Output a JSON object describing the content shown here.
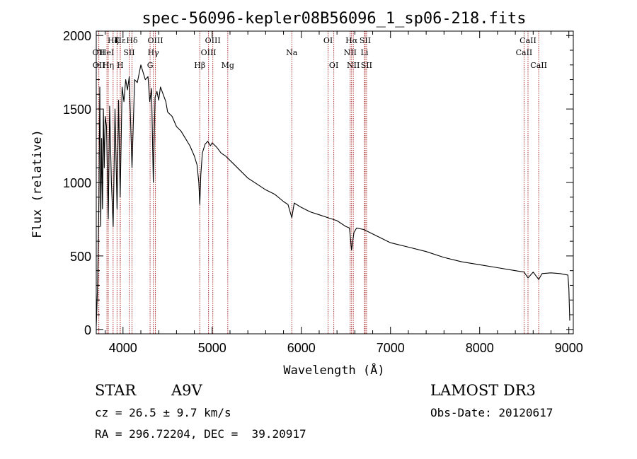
{
  "chart_data": {
    "type": "line",
    "title": "spec-56096-kepler08B56096_1_sp06-218.fits",
    "xlabel": "Wavelength (Å)",
    "ylabel": "Flux (relative)",
    "xlim": [
      3700,
      9050
    ],
    "ylim": [
      -30,
      2030
    ],
    "x_ticks": [
      4000,
      5000,
      6000,
      7000,
      8000,
      9000
    ],
    "y_ticks": [
      0,
      500,
      1000,
      1500,
      2000
    ],
    "grid": false,
    "colors": {
      "spectrum": "#000000",
      "line_markers": "#b03030",
      "axes": "#000000"
    },
    "spectrum": {
      "name": "flux",
      "x": [
        3700,
        3715,
        3730,
        3740,
        3750,
        3760,
        3770,
        3780,
        3790,
        3800,
        3815,
        3835,
        3850,
        3870,
        3890,
        3910,
        3933,
        3950,
        3968,
        3990,
        4010,
        4030,
        4050,
        4070,
        4101,
        4130,
        4160,
        4200,
        4250,
        4280,
        4300,
        4320,
        4340,
        4360,
        4380,
        4400,
        4420,
        4450,
        4480,
        4500,
        4550,
        4600,
        4650,
        4700,
        4750,
        4800,
        4830,
        4850,
        4861,
        4872,
        4890,
        4920,
        4950,
        4980,
        5000,
        5050,
        5100,
        5150,
        5200,
        5300,
        5400,
        5500,
        5600,
        5700,
        5800,
        5850,
        5893,
        5920,
        6000,
        6100,
        6200,
        6300,
        6400,
        6500,
        6540,
        6563,
        6590,
        6620,
        6700,
        6800,
        6900,
        7000,
        7200,
        7400,
        7600,
        7800,
        8000,
        8200,
        8400,
        8498,
        8542,
        8600,
        8662,
        8700,
        8800,
        8900,
        8990,
        9000,
        9010
      ],
      "y": [
        20,
        300,
        900,
        1650,
        700,
        1300,
        820,
        1500,
        1100,
        1450,
        1380,
        750,
        1520,
        1000,
        700,
        1500,
        820,
        1560,
        900,
        1650,
        1550,
        1700,
        1630,
        1720,
        1100,
        1700,
        1680,
        1800,
        1700,
        1720,
        1550,
        1640,
        1000,
        1580,
        1620,
        1560,
        1650,
        1600,
        1550,
        1480,
        1450,
        1380,
        1350,
        1300,
        1250,
        1180,
        1120,
        1000,
        850,
        1050,
        1200,
        1260,
        1280,
        1250,
        1270,
        1240,
        1200,
        1180,
        1150,
        1090,
        1030,
        990,
        950,
        920,
        870,
        850,
        760,
        860,
        830,
        800,
        780,
        760,
        740,
        700,
        690,
        540,
        660,
        690,
        680,
        650,
        620,
        590,
        560,
        530,
        490,
        460,
        440,
        420,
        400,
        390,
        350,
        390,
        340,
        380,
        385,
        380,
        370,
        280,
        60
      ]
    },
    "spectral_lines": [
      {
        "label": "Hε",
        "wavelength": 3970,
        "row": 1
      },
      {
        "label": "OII",
        "wavelength": 3727,
        "row": 2
      },
      {
        "label": "OII",
        "wavelength": 3729,
        "row": 3
      },
      {
        "label": "Hζ",
        "wavelength": 3889,
        "row": 1
      },
      {
        "label": "K",
        "wavelength": 3933,
        "row": 1
      },
      {
        "label": "HeI",
        "wavelength": 3820,
        "row": 2
      },
      {
        "label": "SII",
        "wavelength": 4069,
        "row": 2
      },
      {
        "label": "Hη",
        "wavelength": 3835,
        "row": 3
      },
      {
        "label": "H",
        "wavelength": 3968,
        "row": 3
      },
      {
        "label": "Hδ",
        "wavelength": 4101,
        "row": 1
      },
      {
        "label": "OIII",
        "wavelength": 4363,
        "row": 1
      },
      {
        "label": "Hγ",
        "wavelength": 4340,
        "row": 2
      },
      {
        "label": "G",
        "wavelength": 4304,
        "row": 3
      },
      {
        "label": "OIII",
        "wavelength": 5007,
        "row": 1
      },
      {
        "label": "OIII",
        "wavelength": 4959,
        "row": 2
      },
      {
        "label": "Hβ",
        "wavelength": 4861,
        "row": 3
      },
      {
        "label": "Mg",
        "wavelength": 5175,
        "row": 3
      },
      {
        "label": "Na",
        "wavelength": 5893,
        "row": 2
      },
      {
        "label": "OI",
        "wavelength": 6300,
        "row": 1
      },
      {
        "label": "OI",
        "wavelength": 6364,
        "row": 3
      },
      {
        "label": "Hα",
        "wavelength": 6563,
        "row": 1
      },
      {
        "label": "SII",
        "wavelength": 6716,
        "row": 1
      },
      {
        "label": "NII",
        "wavelength": 6548,
        "row": 2
      },
      {
        "label": "Li",
        "wavelength": 6708,
        "row": 2
      },
      {
        "label": "NII",
        "wavelength": 6583,
        "row": 3
      },
      {
        "label": "SII",
        "wavelength": 6731,
        "row": 3
      },
      {
        "label": "CaII",
        "wavelength": 8542,
        "row": 1
      },
      {
        "label": "CaII",
        "wavelength": 8498,
        "row": 2
      },
      {
        "label": "CaII",
        "wavelength": 8662,
        "row": 3
      }
    ]
  },
  "info": {
    "object_type": "STAR",
    "spectral_class": "A9V",
    "survey": "LAMOST DR3",
    "redshift": "cz = 26.5 ± 9.7 km/s",
    "obs_date": "Obs-Date: 20120617",
    "coordinates": "RA = 296.72204, DEC =  39.20917"
  }
}
